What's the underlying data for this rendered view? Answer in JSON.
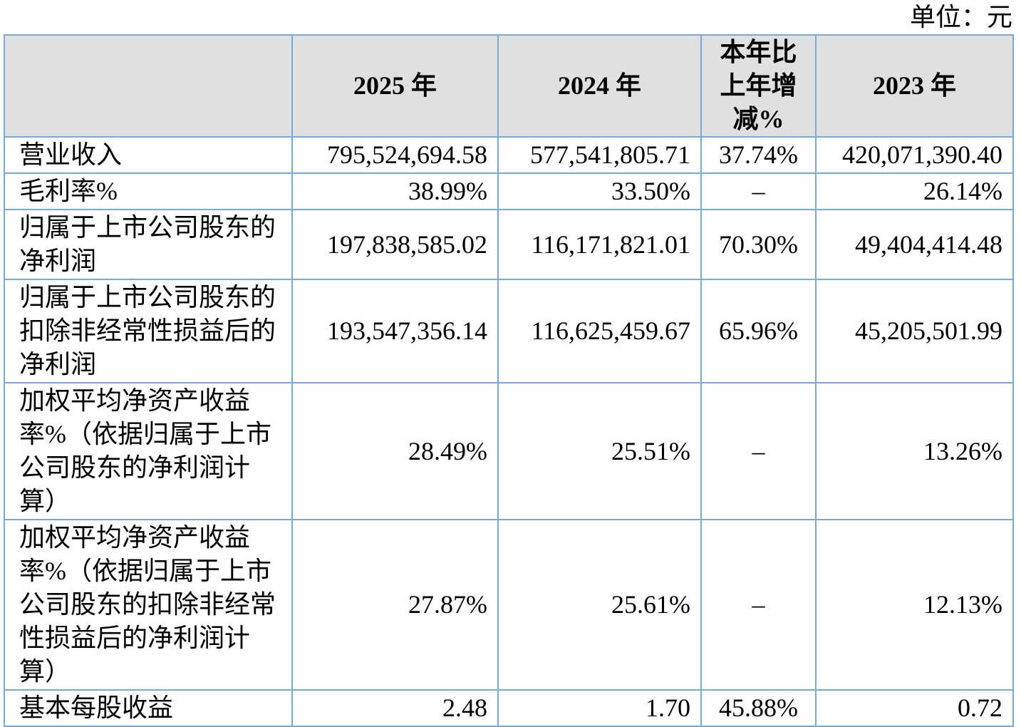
{
  "page": {
    "unit_label": "单位：元"
  },
  "theme": {
    "border_color": "#79A9D9",
    "header_bg": "#E0E0E0",
    "text_color": "#000000",
    "page_bg": "#FFFFFF"
  },
  "table": {
    "headers": {
      "metric": "",
      "y2025": "2025 年",
      "y2024": "2024 年",
      "yoy": "本年比上年增减%",
      "y2023": "2023 年"
    },
    "rows": [
      {
        "label": "营业收入",
        "y2025": "795,524,694.58",
        "y2024": "577,541,805.71",
        "yoy": "37.74%",
        "y2023": "420,071,390.40"
      },
      {
        "label": "毛利率%",
        "y2025": "38.99%",
        "y2024": "33.50%",
        "yoy": "–",
        "y2023": "26.14%"
      },
      {
        "label": "归属于上市公司股东的净利润",
        "y2025": "197,838,585.02",
        "y2024": "116,171,821.01",
        "yoy": "70.30%",
        "y2023": "49,404,414.48"
      },
      {
        "label": "归属于上市公司股东的扣除非经常性损益后的净利润",
        "y2025": "193,547,356.14",
        "y2024": "116,625,459.67",
        "yoy": "65.96%",
        "y2023": "45,205,501.99"
      },
      {
        "label": "加权平均净资产收益率%（依据归属于上市公司股东的净利润计算）",
        "y2025": "28.49%",
        "y2024": "25.51%",
        "yoy": "–",
        "y2023": "13.26%"
      },
      {
        "label": "加权平均净资产收益率%（依据归属于上市公司股东的扣除非经常性损益后的净利润计算）",
        "y2025": "27.87%",
        "y2024": "25.61%",
        "yoy": "–",
        "y2023": "12.13%"
      },
      {
        "label": "基本每股收益",
        "y2025": "2.48",
        "y2024": "1.70",
        "yoy": "45.88%",
        "y2023": "0.72"
      }
    ]
  }
}
